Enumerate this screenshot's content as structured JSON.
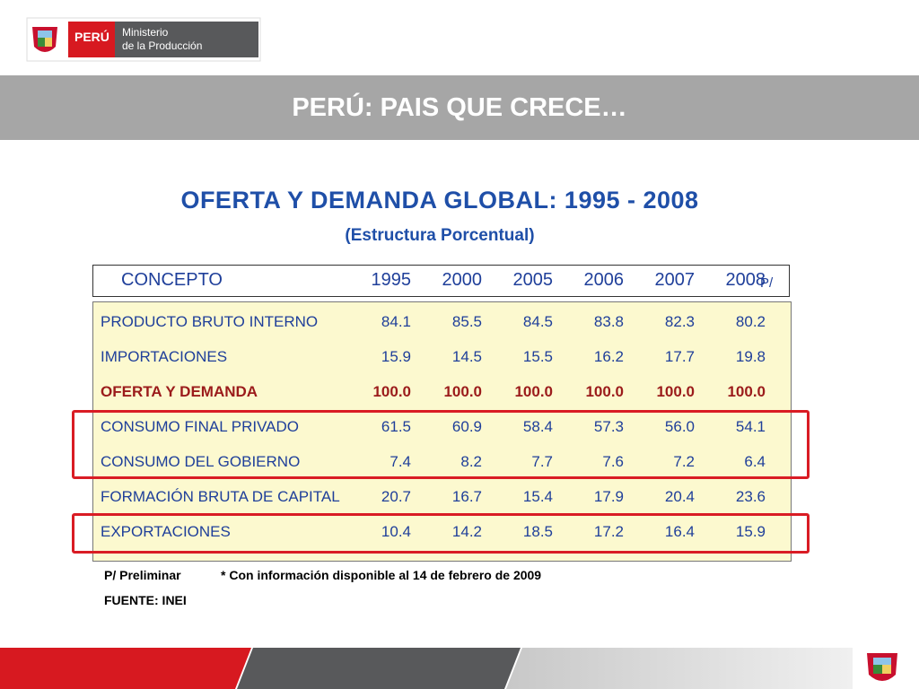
{
  "logo": {
    "country": "PERÚ",
    "line1": "Ministerio",
    "line2": "de la Producción"
  },
  "header": {
    "title": "PERÚ: PAIS QUE CRECE…"
  },
  "table": {
    "title": "OFERTA Y DEMANDA GLOBAL: 1995 - 2008",
    "subtitle": "(Estructura Porcentual)",
    "concept_label": "CONCEPTO",
    "years": [
      "1995",
      "2000",
      "2005",
      "2006",
      "2007",
      "2008"
    ],
    "prelim_mark": "P/",
    "rows": [
      {
        "name": "PRODUCTO BRUTO INTERNO",
        "values": [
          "84.1",
          "85.5",
          "84.5",
          "83.8",
          "82.3",
          "80.2"
        ]
      },
      {
        "name": "IMPORTACIONES",
        "values": [
          "15.9",
          "14.5",
          "15.5",
          "16.2",
          "17.7",
          "19.8"
        ]
      },
      {
        "name": "OFERTA Y DEMANDA",
        "values": [
          "100.0",
          "100.0",
          "100.0",
          "100.0",
          "100.0",
          "100.0"
        ]
      },
      {
        "name": "CONSUMO FINAL PRIVADO",
        "values": [
          "61.5",
          "60.9",
          "58.4",
          "57.3",
          "56.0",
          "54.1"
        ]
      },
      {
        "name": "CONSUMO DEL GOBIERNO",
        "values": [
          "7.4",
          "8.2",
          "7.7",
          "7.6",
          "7.2",
          "6.4"
        ]
      },
      {
        "name": "FORMACIÓN BRUTA DE CAPITAL",
        "values": [
          "20.7",
          "16.7",
          "15.4",
          "17.9",
          "20.4",
          "23.6"
        ]
      },
      {
        "name": "EXPORTACIONES",
        "values": [
          "10.4",
          "14.2",
          "18.5",
          "17.2",
          "16.4",
          "15.9"
        ]
      }
    ],
    "note_prelim": "P/ Preliminar",
    "note_info": "* Con información disponible al 14 de febrero de 2009",
    "source": "FUENTE: INEI"
  }
}
